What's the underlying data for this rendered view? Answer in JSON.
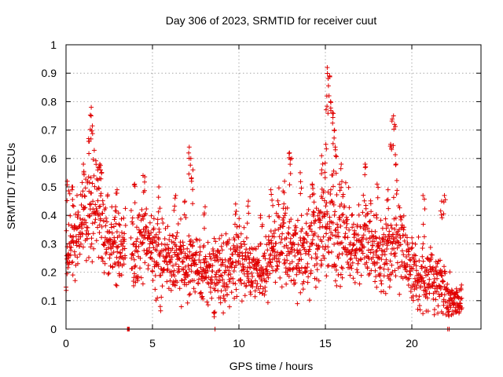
{
  "chart_data": {
    "type": "scatter",
    "title": "Day 306 of 2023, SRMTID for receiver cuut",
    "xlabel": "GPS time / hours",
    "ylabel": "SRMTID / TECUs",
    "xlim": [
      0,
      24
    ],
    "ylim": [
      0,
      1
    ],
    "xticks": [
      0,
      5,
      10,
      15,
      20
    ],
    "xtick_labels": [
      "0",
      "5",
      "10",
      "15",
      "20"
    ],
    "yticks": [
      0,
      0.1,
      0.2,
      0.3,
      0.4,
      0.5,
      0.6,
      0.7,
      0.8,
      0.9,
      1
    ],
    "ytick_labels": [
      "0",
      "0.1",
      "0.2",
      "0.3",
      "0.4",
      "0.5",
      "0.6",
      "0.7",
      "0.8",
      "0.9",
      "1"
    ],
    "grid": true,
    "marker": "+",
    "marker_color": "#e00000",
    "series": [
      {
        "name": "SRMTID",
        "trend": {
          "x": [
            0.0,
            0.5,
            1.0,
            1.5,
            2.0,
            2.5,
            3.0,
            3.5,
            4.0,
            4.5,
            5.0,
            5.5,
            6.0,
            6.5,
            7.0,
            7.5,
            8.0,
            8.5,
            9.0,
            9.5,
            10.0,
            10.5,
            11.0,
            11.5,
            12.0,
            12.5,
            13.0,
            13.5,
            14.0,
            14.5,
            15.0,
            15.5,
            16.0,
            16.5,
            17.0,
            17.5,
            18.0,
            18.5,
            19.0,
            19.5,
            20.0,
            20.5,
            21.0,
            21.5,
            22.0,
            22.5,
            22.9
          ],
          "y": [
            0.28,
            0.32,
            0.36,
            0.4,
            0.38,
            0.32,
            0.28,
            0.3,
            0.26,
            0.34,
            0.28,
            0.25,
            0.24,
            0.26,
            0.22,
            0.24,
            0.2,
            0.21,
            0.2,
            0.22,
            0.25,
            0.22,
            0.2,
            0.2,
            0.3,
            0.34,
            0.28,
            0.26,
            0.3,
            0.32,
            0.35,
            0.38,
            0.34,
            0.3,
            0.3,
            0.32,
            0.28,
            0.26,
            0.3,
            0.28,
            0.2,
            0.18,
            0.17,
            0.17,
            0.12,
            0.09,
            0.11
          ],
          "spread": [
            0.08,
            0.1,
            0.1,
            0.12,
            0.12,
            0.08,
            0.08,
            0.08,
            0.08,
            0.1,
            0.09,
            0.09,
            0.08,
            0.08,
            0.07,
            0.07,
            0.07,
            0.07,
            0.07,
            0.07,
            0.08,
            0.07,
            0.06,
            0.06,
            0.09,
            0.1,
            0.09,
            0.08,
            0.09,
            0.1,
            0.11,
            0.12,
            0.1,
            0.09,
            0.08,
            0.09,
            0.09,
            0.09,
            0.1,
            0.09,
            0.07,
            0.07,
            0.07,
            0.07,
            0.05,
            0.03,
            0.04
          ]
        },
        "peaks": [
          {
            "x": 0.1,
            "y": 0.52
          },
          {
            "x": 0.4,
            "y": 0.5
          },
          {
            "x": 1.0,
            "y": 0.58
          },
          {
            "x": 1.3,
            "y": 0.67
          },
          {
            "x": 1.4,
            "y": 0.78
          },
          {
            "x": 1.5,
            "y": 0.75
          },
          {
            "x": 1.9,
            "y": 0.57
          },
          {
            "x": 2.0,
            "y": 0.58
          },
          {
            "x": 2.9,
            "y": 0.49
          },
          {
            "x": 3.6,
            "y": 0.0
          },
          {
            "x": 4.0,
            "y": 0.51
          },
          {
            "x": 4.5,
            "y": 0.54
          },
          {
            "x": 5.4,
            "y": 0.5
          },
          {
            "x": 6.3,
            "y": 0.47
          },
          {
            "x": 6.9,
            "y": 0.45
          },
          {
            "x": 7.1,
            "y": 0.64
          },
          {
            "x": 7.2,
            "y": 0.6
          },
          {
            "x": 7.3,
            "y": 0.56
          },
          {
            "x": 8.0,
            "y": 0.43
          },
          {
            "x": 8.6,
            "y": 0.06
          },
          {
            "x": 9.8,
            "y": 0.44
          },
          {
            "x": 10.5,
            "y": 0.45
          },
          {
            "x": 11.3,
            "y": 0.4
          },
          {
            "x": 11.9,
            "y": 0.49
          },
          {
            "x": 12.6,
            "y": 0.52
          },
          {
            "x": 12.9,
            "y": 0.62
          },
          {
            "x": 13.0,
            "y": 0.6
          },
          {
            "x": 13.6,
            "y": 0.55
          },
          {
            "x": 14.3,
            "y": 0.51
          },
          {
            "x": 14.8,
            "y": 0.61
          },
          {
            "x": 15.0,
            "y": 0.65
          },
          {
            "x": 15.1,
            "y": 0.82
          },
          {
            "x": 15.15,
            "y": 0.92
          },
          {
            "x": 15.2,
            "y": 0.89
          },
          {
            "x": 15.3,
            "y": 0.8
          },
          {
            "x": 15.4,
            "y": 0.76
          },
          {
            "x": 15.5,
            "y": 0.7
          },
          {
            "x": 15.6,
            "y": 0.64
          },
          {
            "x": 15.9,
            "y": 0.58
          },
          {
            "x": 17.3,
            "y": 0.58
          },
          {
            "x": 18.0,
            "y": 0.51
          },
          {
            "x": 18.6,
            "y": 0.49
          },
          {
            "x": 18.8,
            "y": 0.65
          },
          {
            "x": 18.9,
            "y": 0.75
          },
          {
            "x": 19.0,
            "y": 0.72
          },
          {
            "x": 19.1,
            "y": 0.58
          },
          {
            "x": 20.7,
            "y": 0.47
          },
          {
            "x": 21.7,
            "y": 0.45
          },
          {
            "x": 21.9,
            "y": 0.47
          },
          {
            "x": 22.1,
            "y": 0.06
          }
        ]
      }
    ]
  }
}
